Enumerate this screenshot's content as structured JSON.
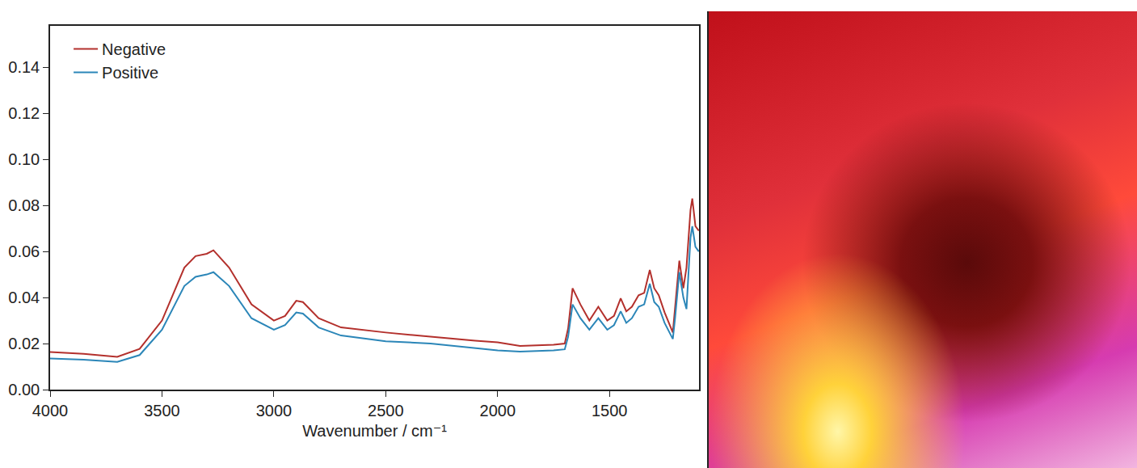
{
  "chart_data": {
    "type": "line",
    "x_label": "Wavenumber / cm⁻¹",
    "x": [
      4000,
      3850,
      3700,
      3600,
      3500,
      3400,
      3350,
      3300,
      3270,
      3200,
      3100,
      3000,
      2950,
      2900,
      2870,
      2800,
      2700,
      2500,
      2300,
      2200,
      2100,
      2000,
      1900,
      1750,
      1700,
      1685,
      1665,
      1630,
      1590,
      1550,
      1510,
      1480,
      1450,
      1425,
      1400,
      1370,
      1345,
      1320,
      1300,
      1280,
      1254,
      1217,
      1207,
      1188,
      1170,
      1156,
      1138,
      1130,
      1116,
      1101
    ],
    "series": [
      {
        "name": "Negative",
        "color": "#b3302c",
        "values": [
          0.0163,
          0.0155,
          0.0142,
          0.0177,
          0.03,
          0.053,
          0.058,
          0.059,
          0.0605,
          0.053,
          0.037,
          0.03,
          0.032,
          0.0386,
          0.038,
          0.031,
          0.027,
          0.0248,
          0.023,
          0.022,
          0.0212,
          0.0205,
          0.019,
          0.0195,
          0.02,
          0.0265,
          0.044,
          0.037,
          0.03,
          0.036,
          0.03,
          0.032,
          0.0396,
          0.034,
          0.036,
          0.041,
          0.042,
          0.052,
          0.044,
          0.041,
          0.0336,
          0.0248,
          0.035,
          0.056,
          0.044,
          0.053,
          0.078,
          0.083,
          0.071,
          0.069
        ]
      },
      {
        "name": "Positive",
        "color": "#2b86b8",
        "values": [
          0.0135,
          0.013,
          0.012,
          0.015,
          0.026,
          0.045,
          0.049,
          0.05,
          0.051,
          0.045,
          0.031,
          0.026,
          0.028,
          0.0335,
          0.033,
          0.027,
          0.0235,
          0.021,
          0.02,
          0.019,
          0.018,
          0.017,
          0.0165,
          0.017,
          0.0175,
          0.023,
          0.037,
          0.031,
          0.026,
          0.031,
          0.026,
          0.028,
          0.034,
          0.029,
          0.031,
          0.036,
          0.037,
          0.046,
          0.038,
          0.036,
          0.029,
          0.022,
          0.031,
          0.051,
          0.04,
          0.035,
          0.066,
          0.071,
          0.062,
          0.06
        ]
      }
    ],
    "xlim": [
      4000,
      1100
    ],
    "xticks": [
      4000,
      3500,
      3000,
      2500,
      2000,
      1500
    ],
    "ylim": [
      0,
      0.158
    ],
    "yticks": [
      {
        "value": 0,
        "label": "0.00"
      },
      {
        "value": 0.02,
        "label": "0.02"
      },
      {
        "value": 0.04,
        "label": "0.04"
      },
      {
        "value": 0.06,
        "label": "0.06"
      },
      {
        "value": 0.08,
        "label": "0.08"
      },
      {
        "value": 0.1,
        "label": "0.10"
      },
      {
        "value": 0.12,
        "label": "0.12"
      },
      {
        "value": 0.14,
        "label": "0.14"
      }
    ],
    "legend": "top left",
    "grid": false
  }
}
